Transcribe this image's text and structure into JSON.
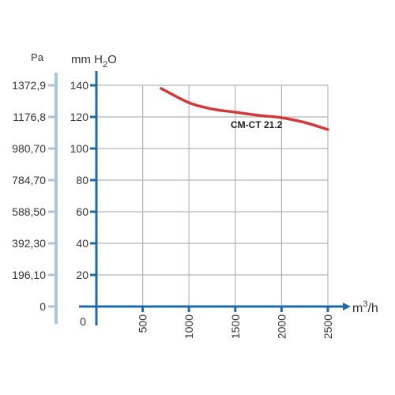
{
  "chart_data": {
    "type": "line",
    "pa_axis_label": "Pa",
    "pa_ticks": [
      "1372,9",
      "1176,8",
      "980,70",
      "784,70",
      "588,50",
      "392,30",
      "196,10",
      "0"
    ],
    "y_unit": {
      "main": "mm H",
      "sub": "2",
      "tail": "O"
    },
    "y_ticks": [
      140,
      120,
      100,
      80,
      60,
      40,
      20
    ],
    "ylim": [
      0,
      140
    ],
    "x_zero_label": "0",
    "x_unit": {
      "main": "m",
      "sup": "3",
      "tail": "/h"
    },
    "x_ticks": [
      500,
      1000,
      1500,
      2000,
      2500
    ],
    "xlim": [
      0,
      2500
    ],
    "grid": true,
    "series": [
      {
        "name": "CM-CT 21.2",
        "color": "#d23a3a",
        "x": [
          700,
          1000,
          1250,
          1500,
          1750,
          2000,
          2250,
          2500
        ],
        "y": [
          138,
          129,
          125,
          123,
          121,
          119.5,
          116.5,
          112
        ]
      }
    ]
  },
  "colors": {
    "axis": "#1f6aa8",
    "grid": "#b5b5b5",
    "pa_axis": "#a9c6dc",
    "text": "#333333"
  }
}
